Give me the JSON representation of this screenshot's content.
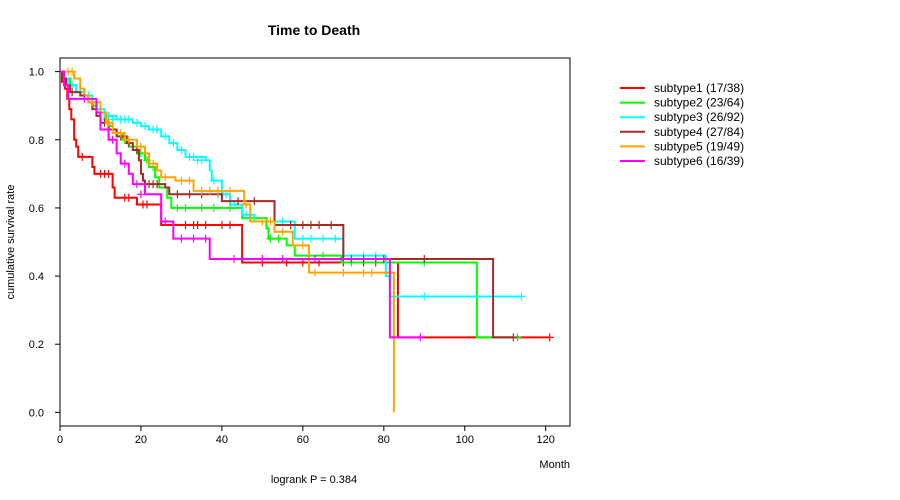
{
  "chart_data": {
    "type": "line",
    "subtype": "kaplan-meier",
    "title": "Time to Death",
    "xlabel": "Month",
    "ylabel": "cumulative survival rate",
    "footnote": "logrank P = 0.384",
    "xlim": [
      0,
      126
    ],
    "ylim": [
      -0.04,
      1.04
    ],
    "xticks": [
      0,
      20,
      40,
      60,
      80,
      100,
      120
    ],
    "yticks": [
      0.0,
      0.2,
      0.4,
      0.6,
      0.8,
      1.0
    ],
    "ytick_labels": [
      "0.0",
      "0.2",
      "0.4",
      "0.6",
      "0.8",
      "1.0"
    ],
    "legend_position": "top-right, outside plot",
    "series": [
      {
        "name": "subtype1 (17/38)",
        "color": "#FF0000",
        "steps": [
          [
            0,
            1.0
          ],
          [
            0.5,
            0.97
          ],
          [
            1.2,
            0.95
          ],
          [
            1.8,
            0.92
          ],
          [
            2.3,
            0.89
          ],
          [
            2.8,
            0.86
          ],
          [
            3.5,
            0.8
          ],
          [
            4.0,
            0.78
          ],
          [
            4.5,
            0.75
          ],
          [
            8.0,
            0.72
          ],
          [
            8.5,
            0.7
          ],
          [
            13.0,
            0.66
          ],
          [
            13.5,
            0.63
          ],
          [
            19.0,
            0.61
          ],
          [
            25.0,
            0.55
          ],
          [
            45.0,
            0.44
          ],
          [
            83.5,
            0.22
          ],
          [
            121.0,
            0.22
          ]
        ],
        "censors": [
          [
            5.5,
            0.75
          ],
          [
            10,
            0.7
          ],
          [
            11,
            0.7
          ],
          [
            12,
            0.7
          ],
          [
            16,
            0.63
          ],
          [
            17,
            0.63
          ],
          [
            20.5,
            0.61
          ],
          [
            21.5,
            0.61
          ],
          [
            28,
            0.55
          ],
          [
            31,
            0.55
          ],
          [
            33,
            0.55
          ],
          [
            34,
            0.55
          ],
          [
            36,
            0.55
          ],
          [
            40,
            0.55
          ],
          [
            42,
            0.55
          ],
          [
            50,
            0.44
          ],
          [
            56,
            0.44
          ],
          [
            60,
            0.44
          ],
          [
            64,
            0.44
          ],
          [
            70,
            0.44
          ],
          [
            75,
            0.44
          ],
          [
            78,
            0.44
          ],
          [
            121,
            0.22
          ]
        ]
      },
      {
        "name": "subtype2 (23/64)",
        "color": "#00FF00",
        "steps": [
          [
            0,
            1.0
          ],
          [
            1.0,
            0.98
          ],
          [
            2.5,
            0.96
          ],
          [
            4.0,
            0.94
          ],
          [
            6.0,
            0.92
          ],
          [
            8.0,
            0.9
          ],
          [
            9.0,
            0.88
          ],
          [
            11.0,
            0.86
          ],
          [
            12.0,
            0.84
          ],
          [
            13.0,
            0.82
          ],
          [
            15.5,
            0.8
          ],
          [
            17.0,
            0.78
          ],
          [
            19.0,
            0.76
          ],
          [
            21.0,
            0.74
          ],
          [
            22.0,
            0.72
          ],
          [
            23.5,
            0.69
          ],
          [
            24.5,
            0.66
          ],
          [
            26.5,
            0.63
          ],
          [
            27.5,
            0.6
          ],
          [
            45.0,
            0.57
          ],
          [
            51.0,
            0.54
          ],
          [
            51.5,
            0.51
          ],
          [
            56.0,
            0.49
          ],
          [
            58.0,
            0.46
          ],
          [
            69.5,
            0.44
          ],
          [
            103.0,
            0.22
          ],
          [
            113.0,
            0.22
          ]
        ],
        "censors": [
          [
            5,
            0.94
          ],
          [
            14,
            0.82
          ],
          [
            16,
            0.8
          ],
          [
            18,
            0.78
          ],
          [
            20,
            0.76
          ],
          [
            21.5,
            0.74
          ],
          [
            23,
            0.72
          ],
          [
            29,
            0.6
          ],
          [
            31,
            0.6
          ],
          [
            35,
            0.6
          ],
          [
            38,
            0.6
          ],
          [
            42,
            0.6
          ],
          [
            47,
            0.57
          ],
          [
            52,
            0.51
          ],
          [
            54,
            0.51
          ],
          [
            65,
            0.46
          ],
          [
            72,
            0.44
          ],
          [
            90,
            0.44
          ],
          [
            113,
            0.22
          ]
        ]
      },
      {
        "name": "subtype3 (26/92)",
        "color": "#00FFFF",
        "steps": [
          [
            0,
            1.0
          ],
          [
            1.0,
            0.98
          ],
          [
            2.0,
            0.96
          ],
          [
            4.0,
            0.94
          ],
          [
            6.0,
            0.93
          ],
          [
            8.0,
            0.91
          ],
          [
            9.0,
            0.89
          ],
          [
            11.0,
            0.87
          ],
          [
            14.0,
            0.86
          ],
          [
            18.0,
            0.85
          ],
          [
            20.0,
            0.84
          ],
          [
            22.0,
            0.83
          ],
          [
            25.0,
            0.81
          ],
          [
            27.0,
            0.79
          ],
          [
            29.0,
            0.77
          ],
          [
            31.0,
            0.75
          ],
          [
            36.0,
            0.74
          ],
          [
            37.0,
            0.71
          ],
          [
            37.5,
            0.68
          ],
          [
            40.0,
            0.64
          ],
          [
            42.0,
            0.61
          ],
          [
            45.0,
            0.58
          ],
          [
            48.0,
            0.56
          ],
          [
            58.0,
            0.51
          ],
          [
            70.0,
            0.46
          ],
          [
            80.5,
            0.4
          ],
          [
            81.5,
            0.34
          ],
          [
            114.0,
            0.34
          ]
        ],
        "censors": [
          [
            3,
            0.96
          ],
          [
            5,
            0.94
          ],
          [
            7,
            0.93
          ],
          [
            10,
            0.89
          ],
          [
            12,
            0.87
          ],
          [
            13,
            0.86
          ],
          [
            15,
            0.86
          ],
          [
            16,
            0.86
          ],
          [
            17,
            0.86
          ],
          [
            19,
            0.85
          ],
          [
            21,
            0.84
          ],
          [
            23,
            0.83
          ],
          [
            24,
            0.83
          ],
          [
            26,
            0.81
          ],
          [
            28,
            0.79
          ],
          [
            30,
            0.77
          ],
          [
            32,
            0.75
          ],
          [
            33,
            0.75
          ],
          [
            34,
            0.74
          ],
          [
            35,
            0.74
          ],
          [
            38,
            0.68
          ],
          [
            39,
            0.64
          ],
          [
            41,
            0.64
          ],
          [
            43,
            0.61
          ],
          [
            46,
            0.58
          ],
          [
            47,
            0.58
          ],
          [
            50,
            0.56
          ],
          [
            53,
            0.56
          ],
          [
            55,
            0.56
          ],
          [
            60,
            0.51
          ],
          [
            62,
            0.51
          ],
          [
            65,
            0.51
          ],
          [
            68,
            0.51
          ],
          [
            75,
            0.46
          ],
          [
            78,
            0.46
          ],
          [
            90,
            0.34
          ],
          [
            114,
            0.34
          ]
        ]
      },
      {
        "name": "subtype4 (27/84)",
        "color": "#A52A2A",
        "steps": [
          [
            0,
            1.0
          ],
          [
            0.5,
            0.98
          ],
          [
            1.5,
            0.96
          ],
          [
            2.5,
            0.94
          ],
          [
            5.0,
            0.93
          ],
          [
            7.0,
            0.91
          ],
          [
            8.0,
            0.89
          ],
          [
            9.0,
            0.87
          ],
          [
            10.0,
            0.85
          ],
          [
            12.0,
            0.83
          ],
          [
            14.0,
            0.81
          ],
          [
            16.5,
            0.79
          ],
          [
            18.0,
            0.77
          ],
          [
            19.5,
            0.74
          ],
          [
            20.0,
            0.7
          ],
          [
            20.5,
            0.68
          ],
          [
            21.0,
            0.67
          ],
          [
            26.0,
            0.66
          ],
          [
            27.0,
            0.64
          ],
          [
            40.0,
            0.62
          ],
          [
            53.0,
            0.55
          ],
          [
            70.0,
            0.45
          ],
          [
            107.0,
            0.22
          ],
          [
            112.0,
            0.22
          ]
        ],
        "censors": [
          [
            3,
            0.94
          ],
          [
            6,
            0.93
          ],
          [
            11,
            0.85
          ],
          [
            13,
            0.83
          ],
          [
            15,
            0.81
          ],
          [
            17,
            0.79
          ],
          [
            19,
            0.77
          ],
          [
            22,
            0.67
          ],
          [
            23,
            0.67
          ],
          [
            24,
            0.67
          ],
          [
            29,
            0.64
          ],
          [
            32,
            0.64
          ],
          [
            35,
            0.64
          ],
          [
            44,
            0.62
          ],
          [
            48,
            0.62
          ],
          [
            57,
            0.55
          ],
          [
            60,
            0.55
          ],
          [
            62,
            0.55
          ],
          [
            64,
            0.55
          ],
          [
            67,
            0.55
          ],
          [
            72,
            0.45
          ],
          [
            75,
            0.45
          ],
          [
            80,
            0.45
          ],
          [
            90,
            0.45
          ],
          [
            112,
            0.22
          ]
        ]
      },
      {
        "name": "subtype5 (19/49)",
        "color": "#FFA500",
        "steps": [
          [
            0,
            1.0
          ],
          [
            3.5,
            0.98
          ],
          [
            5.0,
            0.95
          ],
          [
            6.0,
            0.93
          ],
          [
            7.0,
            0.91
          ],
          [
            10.0,
            0.88
          ],
          [
            11.5,
            0.85
          ],
          [
            13.0,
            0.82
          ],
          [
            16.0,
            0.8
          ],
          [
            19.0,
            0.78
          ],
          [
            21.0,
            0.76
          ],
          [
            22.0,
            0.73
          ],
          [
            24.0,
            0.71
          ],
          [
            25.0,
            0.69
          ],
          [
            28.5,
            0.68
          ],
          [
            33.0,
            0.65
          ],
          [
            45.5,
            0.61
          ],
          [
            47.0,
            0.56
          ],
          [
            53.0,
            0.53
          ],
          [
            57.5,
            0.49
          ],
          [
            61.5,
            0.41
          ],
          [
            82.5,
            0.0
          ]
        ],
        "censors": [
          [
            2,
            1.0
          ],
          [
            3,
            1.0
          ],
          [
            8,
            0.91
          ],
          [
            12,
            0.85
          ],
          [
            15,
            0.82
          ],
          [
            17,
            0.8
          ],
          [
            20,
            0.78
          ],
          [
            23,
            0.73
          ],
          [
            26,
            0.69
          ],
          [
            30,
            0.68
          ],
          [
            32,
            0.68
          ],
          [
            35,
            0.65
          ],
          [
            37,
            0.65
          ],
          [
            39,
            0.65
          ],
          [
            42,
            0.65
          ],
          [
            46,
            0.61
          ],
          [
            50,
            0.56
          ],
          [
            52,
            0.56
          ],
          [
            55,
            0.53
          ],
          [
            60,
            0.49
          ],
          [
            63,
            0.41
          ],
          [
            70,
            0.41
          ],
          [
            75,
            0.41
          ],
          [
            77,
            0.41
          ]
        ]
      },
      {
        "name": "subtype6 (16/39)",
        "color": "#FF00FF",
        "steps": [
          [
            0,
            1.0
          ],
          [
            1.0,
            0.96
          ],
          [
            2.0,
            0.92
          ],
          [
            9.0,
            0.88
          ],
          [
            10.0,
            0.83
          ],
          [
            12.0,
            0.8
          ],
          [
            14.0,
            0.76
          ],
          [
            15.0,
            0.73
          ],
          [
            17.0,
            0.7
          ],
          [
            18.0,
            0.67
          ],
          [
            21.0,
            0.64
          ],
          [
            25.0,
            0.56
          ],
          [
            28.0,
            0.51
          ],
          [
            37.0,
            0.45
          ],
          [
            81.5,
            0.22
          ],
          [
            90.0,
            0.22
          ]
        ],
        "censors": [
          [
            6,
            0.92
          ],
          [
            13,
            0.8
          ],
          [
            16,
            0.73
          ],
          [
            19,
            0.67
          ],
          [
            20,
            0.64
          ],
          [
            26,
            0.56
          ],
          [
            30,
            0.51
          ],
          [
            33,
            0.51
          ],
          [
            36,
            0.51
          ],
          [
            43,
            0.45
          ],
          [
            50,
            0.45
          ],
          [
            55,
            0.45
          ],
          [
            63,
            0.45
          ],
          [
            72,
            0.45
          ],
          [
            78,
            0.45
          ],
          [
            89,
            0.22
          ]
        ]
      }
    ]
  }
}
